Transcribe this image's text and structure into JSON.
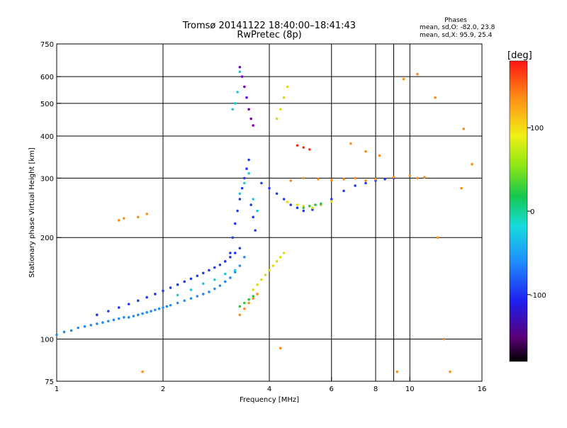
{
  "chart_data": {
    "type": "scatter",
    "title": "Tromsø 20141122 18:40:00–18:41:43",
    "subtitle": "RwPretec (8p)",
    "xlabel": "Frequency [MHz]",
    "ylabel": "Stationary phase Virtual Height [km]",
    "x_scale": "log",
    "y_scale": "log",
    "xlim": [
      1,
      16
    ],
    "ylim": [
      75,
      750
    ],
    "x_ticks": [
      1,
      2,
      4,
      6,
      8,
      10,
      16
    ],
    "x_gridlines": [
      2,
      4,
      6,
      8,
      9,
      10
    ],
    "y_ticks": [
      75,
      100,
      200,
      300,
      400,
      500,
      600,
      750
    ],
    "y_gridlines": [
      100,
      200,
      300,
      400,
      500,
      600
    ],
    "grid": true,
    "info_box": {
      "title": "Phases",
      "line1": "mean, sd,O: -82.0, 23.8",
      "line2": "mean, sd,X:  95.9, 25.4"
    },
    "colorbar": {
      "label": "[deg]",
      "range": [
        -180,
        180
      ],
      "ticks": [
        100,
        0,
        -100
      ],
      "colormap": "rainbow"
    },
    "colors": {
      "violet": "#7a00c8",
      "blue": "#1e3cf0",
      "azure": "#1e8cff",
      "cyan": "#1ec8dc",
      "green": "#28c83c",
      "yellow": "#dcdc14",
      "orange": "#ff8c14",
      "red": "#ff3214"
    },
    "series": [
      {
        "trace": "lower-band",
        "x": [
          1.0,
          1.05,
          1.1,
          1.15,
          1.2,
          1.25,
          1.3,
          1.35,
          1.4,
          1.45,
          1.5,
          1.55,
          1.6,
          1.65,
          1.7,
          1.75,
          1.8,
          1.85,
          1.9,
          1.95,
          2.0,
          2.05,
          2.1,
          2.2,
          2.3,
          2.4,
          2.5,
          2.6,
          2.7,
          2.8,
          2.9,
          3.0,
          3.1,
          3.2,
          3.3,
          3.4
        ],
        "y": [
          103,
          105,
          106,
          108,
          109,
          110,
          111,
          112,
          113,
          114,
          115,
          116,
          116,
          117,
          118,
          119,
          120,
          121,
          122,
          123,
          124,
          125,
          126,
          128,
          130,
          132,
          134,
          136,
          138,
          141,
          144,
          148,
          152,
          158,
          165,
          175
        ],
        "color": "#1e8cff"
      },
      {
        "trace": "upper-band",
        "x": [
          1.3,
          1.4,
          1.5,
          1.6,
          1.7,
          1.8,
          1.9,
          2.0,
          2.1,
          2.2,
          2.3,
          2.4,
          2.5,
          2.6,
          2.7,
          2.8,
          2.9,
          3.0,
          3.1,
          3.2,
          3.3
        ],
        "y": [
          118,
          121,
          124,
          127,
          130,
          133,
          136,
          139,
          142,
          145,
          148,
          151,
          154,
          157,
          160,
          163,
          166,
          170,
          175,
          180,
          186
        ],
        "color": "#1e3cf0"
      },
      {
        "trace": "band-cyan",
        "x": [
          2.2,
          2.4,
          2.6,
          2.8,
          3.0,
          3.2
        ],
        "y": [
          135,
          140,
          146,
          150,
          156,
          160
        ],
        "color": "#1ec8dc"
      },
      {
        "trace": "lower-band-tail",
        "x": [
          3.3,
          3.4,
          3.5,
          3.6,
          3.7
        ],
        "y": [
          118,
          123,
          128,
          132,
          136
        ],
        "color": "#ff8c14"
      },
      {
        "trace": "yellow-cluster",
        "x": [
          3.6,
          3.7,
          3.8,
          3.9,
          4.0,
          4.1,
          4.2,
          4.3,
          4.4
        ],
        "y": [
          140,
          145,
          150,
          155,
          160,
          165,
          170,
          175,
          180
        ],
        "color": "#dcdc14"
      },
      {
        "trace": "green-cluster",
        "x": [
          3.3,
          3.4,
          3.5,
          3.6
        ],
        "y": [
          125,
          128,
          131,
          134
        ],
        "color": "#28c83c"
      },
      {
        "trace": "cusp-column",
        "x": [
          3.1,
          3.15,
          3.2,
          3.25,
          3.3,
          3.35,
          3.4,
          3.45,
          3.5,
          3.55,
          3.6,
          3.65
        ],
        "y": [
          180,
          200,
          220,
          240,
          260,
          280,
          300,
          320,
          340,
          250,
          230,
          210
        ],
        "color": "#1e3cf0"
      },
      {
        "trace": "cusp-column-cyan",
        "x": [
          3.3,
          3.4,
          3.5,
          3.6,
          3.7
        ],
        "y": [
          270,
          290,
          310,
          260,
          240
        ],
        "color": "#1ec8dc"
      },
      {
        "trace": "f-layer",
        "x": [
          3.8,
          4.0,
          4.2,
          4.4,
          4.6,
          4.8,
          5.0,
          5.3,
          5.6,
          6.0,
          6.5,
          7.0,
          7.5,
          8.0,
          8.5,
          9.0
        ],
        "y": [
          290,
          280,
          270,
          260,
          250,
          245,
          240,
          242,
          250,
          260,
          275,
          285,
          290,
          295,
          298,
          300
        ],
        "color": "#1e3cf0"
      },
      {
        "trace": "f-layer-yellow",
        "x": [
          4.5,
          4.8,
          5.0,
          5.3,
          5.6,
          6.0
        ],
        "y": [
          255,
          250,
          248,
          245,
          250,
          256
        ],
        "color": "#dcdc14"
      },
      {
        "trace": "f-layer-green",
        "x": [
          5.0,
          5.2,
          5.4,
          5.6
        ],
        "y": [
          245,
          248,
          250,
          252
        ],
        "color": "#28c83c"
      },
      {
        "trace": "f-layer-orange",
        "x": [
          4.6,
          5.0,
          5.5,
          6.0,
          6.5,
          7.0,
          7.5,
          8.0,
          9.0,
          10.0,
          10.5,
          11.0
        ],
        "y": [
          295,
          300,
          298,
          296,
          298,
          300,
          295,
          298,
          302,
          305,
          300,
          302
        ],
        "color": "#ff8c14"
      },
      {
        "trace": "f-layer-red",
        "x": [
          4.8,
          5.0,
          5.2
        ],
        "y": [
          375,
          370,
          365
        ],
        "color": "#ff3214"
      },
      {
        "trace": "upper-echo-violet",
        "x": [
          3.3,
          3.35,
          3.4,
          3.45,
          3.5,
          3.55,
          3.6
        ],
        "y": [
          640,
          600,
          560,
          520,
          480,
          450,
          430
        ],
        "color": "#7a00c8"
      },
      {
        "trace": "upper-echo-cyan",
        "x": [
          3.15,
          3.2,
          3.25,
          3.3
        ],
        "y": [
          480,
          500,
          540,
          620
        ],
        "color": "#1ec8dc"
      },
      {
        "trace": "upper-echo-yellow",
        "x": [
          4.2,
          4.3,
          4.4,
          4.5
        ],
        "y": [
          450,
          480,
          520,
          560
        ],
        "color": "#dcdc14"
      },
      {
        "trace": "scattered-echoes",
        "x": [
          1.5,
          1.55,
          1.7,
          1.8,
          1.75,
          4.3,
          6.8,
          7.5,
          8.2,
          9.2,
          9.6,
          10.5,
          11.8,
          12.0,
          12.5,
          13.0,
          14.0,
          14.2,
          15.0
        ],
        "y": [
          225,
          228,
          230,
          235,
          80,
          94,
          380,
          360,
          350,
          80,
          590,
          610,
          520,
          200,
          100,
          80,
          280,
          420,
          330
        ],
        "color": "#ff8c14"
      }
    ]
  }
}
